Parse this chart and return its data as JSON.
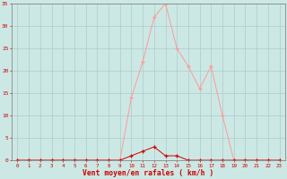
{
  "x": [
    0,
    1,
    2,
    3,
    4,
    5,
    6,
    7,
    8,
    9,
    10,
    11,
    12,
    13,
    14,
    15,
    16,
    17,
    18,
    19,
    20,
    21,
    22,
    23
  ],
  "rafales": [
    0,
    0,
    0,
    0,
    0,
    0,
    0,
    0,
    0,
    0,
    14,
    22,
    32,
    35,
    25,
    21,
    16,
    21,
    10,
    0,
    0,
    0,
    0,
    0
  ],
  "moyen": [
    0,
    0,
    0,
    0,
    0,
    0,
    0,
    0,
    0,
    0,
    1,
    2,
    3,
    1,
    1,
    0,
    0,
    0,
    0,
    0,
    0,
    0,
    0,
    0
  ],
  "xlabel": "Vent moyen/en rafales ( km/h )",
  "ylim": [
    0,
    35
  ],
  "xlim": [
    -0.5,
    23.5
  ],
  "yticks": [
    0,
    5,
    10,
    15,
    20,
    25,
    30,
    35
  ],
  "xticks": [
    0,
    1,
    2,
    3,
    4,
    5,
    6,
    7,
    8,
    9,
    10,
    11,
    12,
    13,
    14,
    15,
    16,
    17,
    18,
    19,
    20,
    21,
    22,
    23
  ],
  "bg_color": "#cce8e4",
  "grid_color": "#aacccc",
  "line_color_rafales": "#ff9999",
  "line_color_moyen": "#cc0000",
  "xlabel_color": "#cc0000",
  "tick_color": "#cc0000",
  "axis_color": "#888888"
}
